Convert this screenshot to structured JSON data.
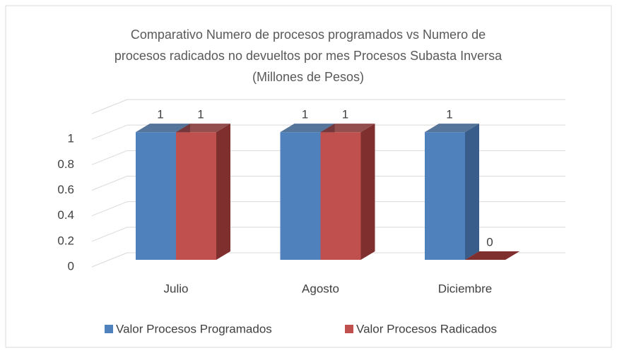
{
  "chart_data": {
    "type": "bar3d",
    "title": [
      "Comparativo Numero de procesos programados vs Numero de",
      "procesos radicados no devueltos por mes Procesos Subasta Inversa",
      "(Millones de Pesos)"
    ],
    "categories": [
      "Julio",
      "Agosto",
      "Diciembre"
    ],
    "series": [
      {
        "name": "Valor Procesos Programados",
        "color": "#4f81bd",
        "side": "#385d8a",
        "values": [
          1,
          1,
          1
        ]
      },
      {
        "name": "Valor Procesos Radicados",
        "color": "#c0504d",
        "side": "#7f302e",
        "values": [
          1,
          1,
          0
        ]
      }
    ],
    "ylim": [
      0,
      1.2
    ],
    "yticks": [
      0,
      0.2,
      0.4,
      0.6,
      0.8,
      1
    ],
    "grid": true,
    "legend": "bottom"
  }
}
